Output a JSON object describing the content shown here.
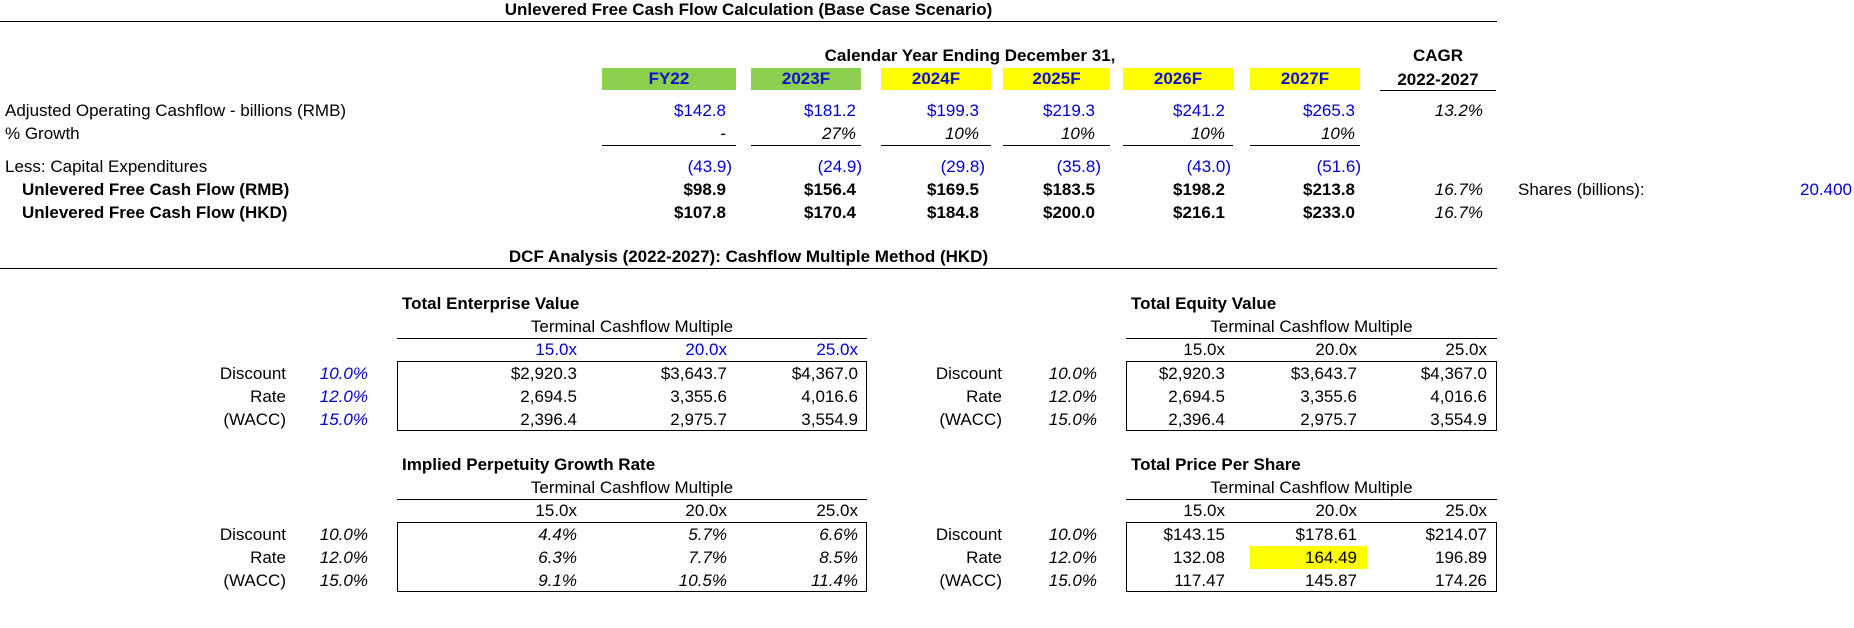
{
  "colors": {
    "green": "#8cd04f",
    "yellow": "#ffff00",
    "blue": "#0000cc"
  },
  "title_ufcf": "Unlevered Free Cash Flow Calculation (Base Case Scenario)",
  "calendar_label": "Calendar Year Ending December 31,",
  "cagr": {
    "label": "CAGR",
    "period": "2022-2027"
  },
  "years": [
    "FY22",
    "2023F",
    "2024F",
    "2025F",
    "2026F",
    "2027F"
  ],
  "ufcf_rows": [
    {
      "label": "Adjusted Operating Cashflow - billions (RMB)",
      "values": [
        "$142.8",
        "$181.2",
        "$199.3",
        "$219.3",
        "$241.2",
        "$265.3"
      ],
      "cagr": "13.2%"
    },
    {
      "label": "% Growth",
      "values": [
        "-",
        "27%",
        "10%",
        "10%",
        "10%",
        "10%"
      ],
      "cagr": ""
    },
    {
      "label": "Less: Capital Expenditures",
      "values": [
        "(43.9)",
        "(24.9)",
        "(29.8)",
        "(35.8)",
        "(43.0)",
        "(51.6)"
      ],
      "cagr": ""
    },
    {
      "label": "Unlevered Free Cash Flow (RMB)",
      "values": [
        "$98.9",
        "$156.4",
        "$169.5",
        "$183.5",
        "$198.2",
        "$213.8"
      ],
      "cagr": "16.7%"
    },
    {
      "label": "Unlevered Free Cash Flow (HKD)",
      "values": [
        "$107.8",
        "$170.4",
        "$184.8",
        "$200.0",
        "$216.1",
        "$233.0"
      ],
      "cagr": "16.7%"
    }
  ],
  "shares": {
    "label": "Shares (billions):",
    "value": "20.400"
  },
  "title_dcf": "DCF Analysis (2022-2027):  Cashflow Multiple Method (HKD)",
  "row_labels": [
    "Discount",
    "Rate",
    "(WACC)"
  ],
  "rates": [
    "10.0%",
    "12.0%",
    "15.0%"
  ],
  "multiple_label": "Terminal Cashflow Multiple",
  "multiples": [
    "15.0x",
    "20.0x",
    "25.0x"
  ],
  "tables": {
    "tev": {
      "title": "Total Enterprise Value",
      "rows": [
        [
          "$2,920.3",
          "$3,643.7",
          "$4,367.0"
        ],
        [
          "2,694.5",
          "3,355.6",
          "4,016.6"
        ],
        [
          "2,396.4",
          "2,975.7",
          "3,554.9"
        ]
      ]
    },
    "teq": {
      "title": "Total Equity Value",
      "rows": [
        [
          "$2,920.3",
          "$3,643.7",
          "$4,367.0"
        ],
        [
          "2,694.5",
          "3,355.6",
          "4,016.6"
        ],
        [
          "2,396.4",
          "2,975.7",
          "3,554.9"
        ]
      ]
    },
    "ipg": {
      "title": "Implied Perpetuity Growth Rate",
      "rows": [
        [
          "4.4%",
          "5.7%",
          "6.6%"
        ],
        [
          "6.3%",
          "7.7%",
          "8.5%"
        ],
        [
          "9.1%",
          "10.5%",
          "11.4%"
        ]
      ]
    },
    "tps": {
      "title": "Total Price Per Share",
      "rows": [
        [
          "$143.15",
          "$178.61",
          "$214.07"
        ],
        [
          "132.08",
          "164.49",
          "196.89"
        ],
        [
          "117.47",
          "145.87",
          "174.26"
        ]
      ]
    }
  }
}
